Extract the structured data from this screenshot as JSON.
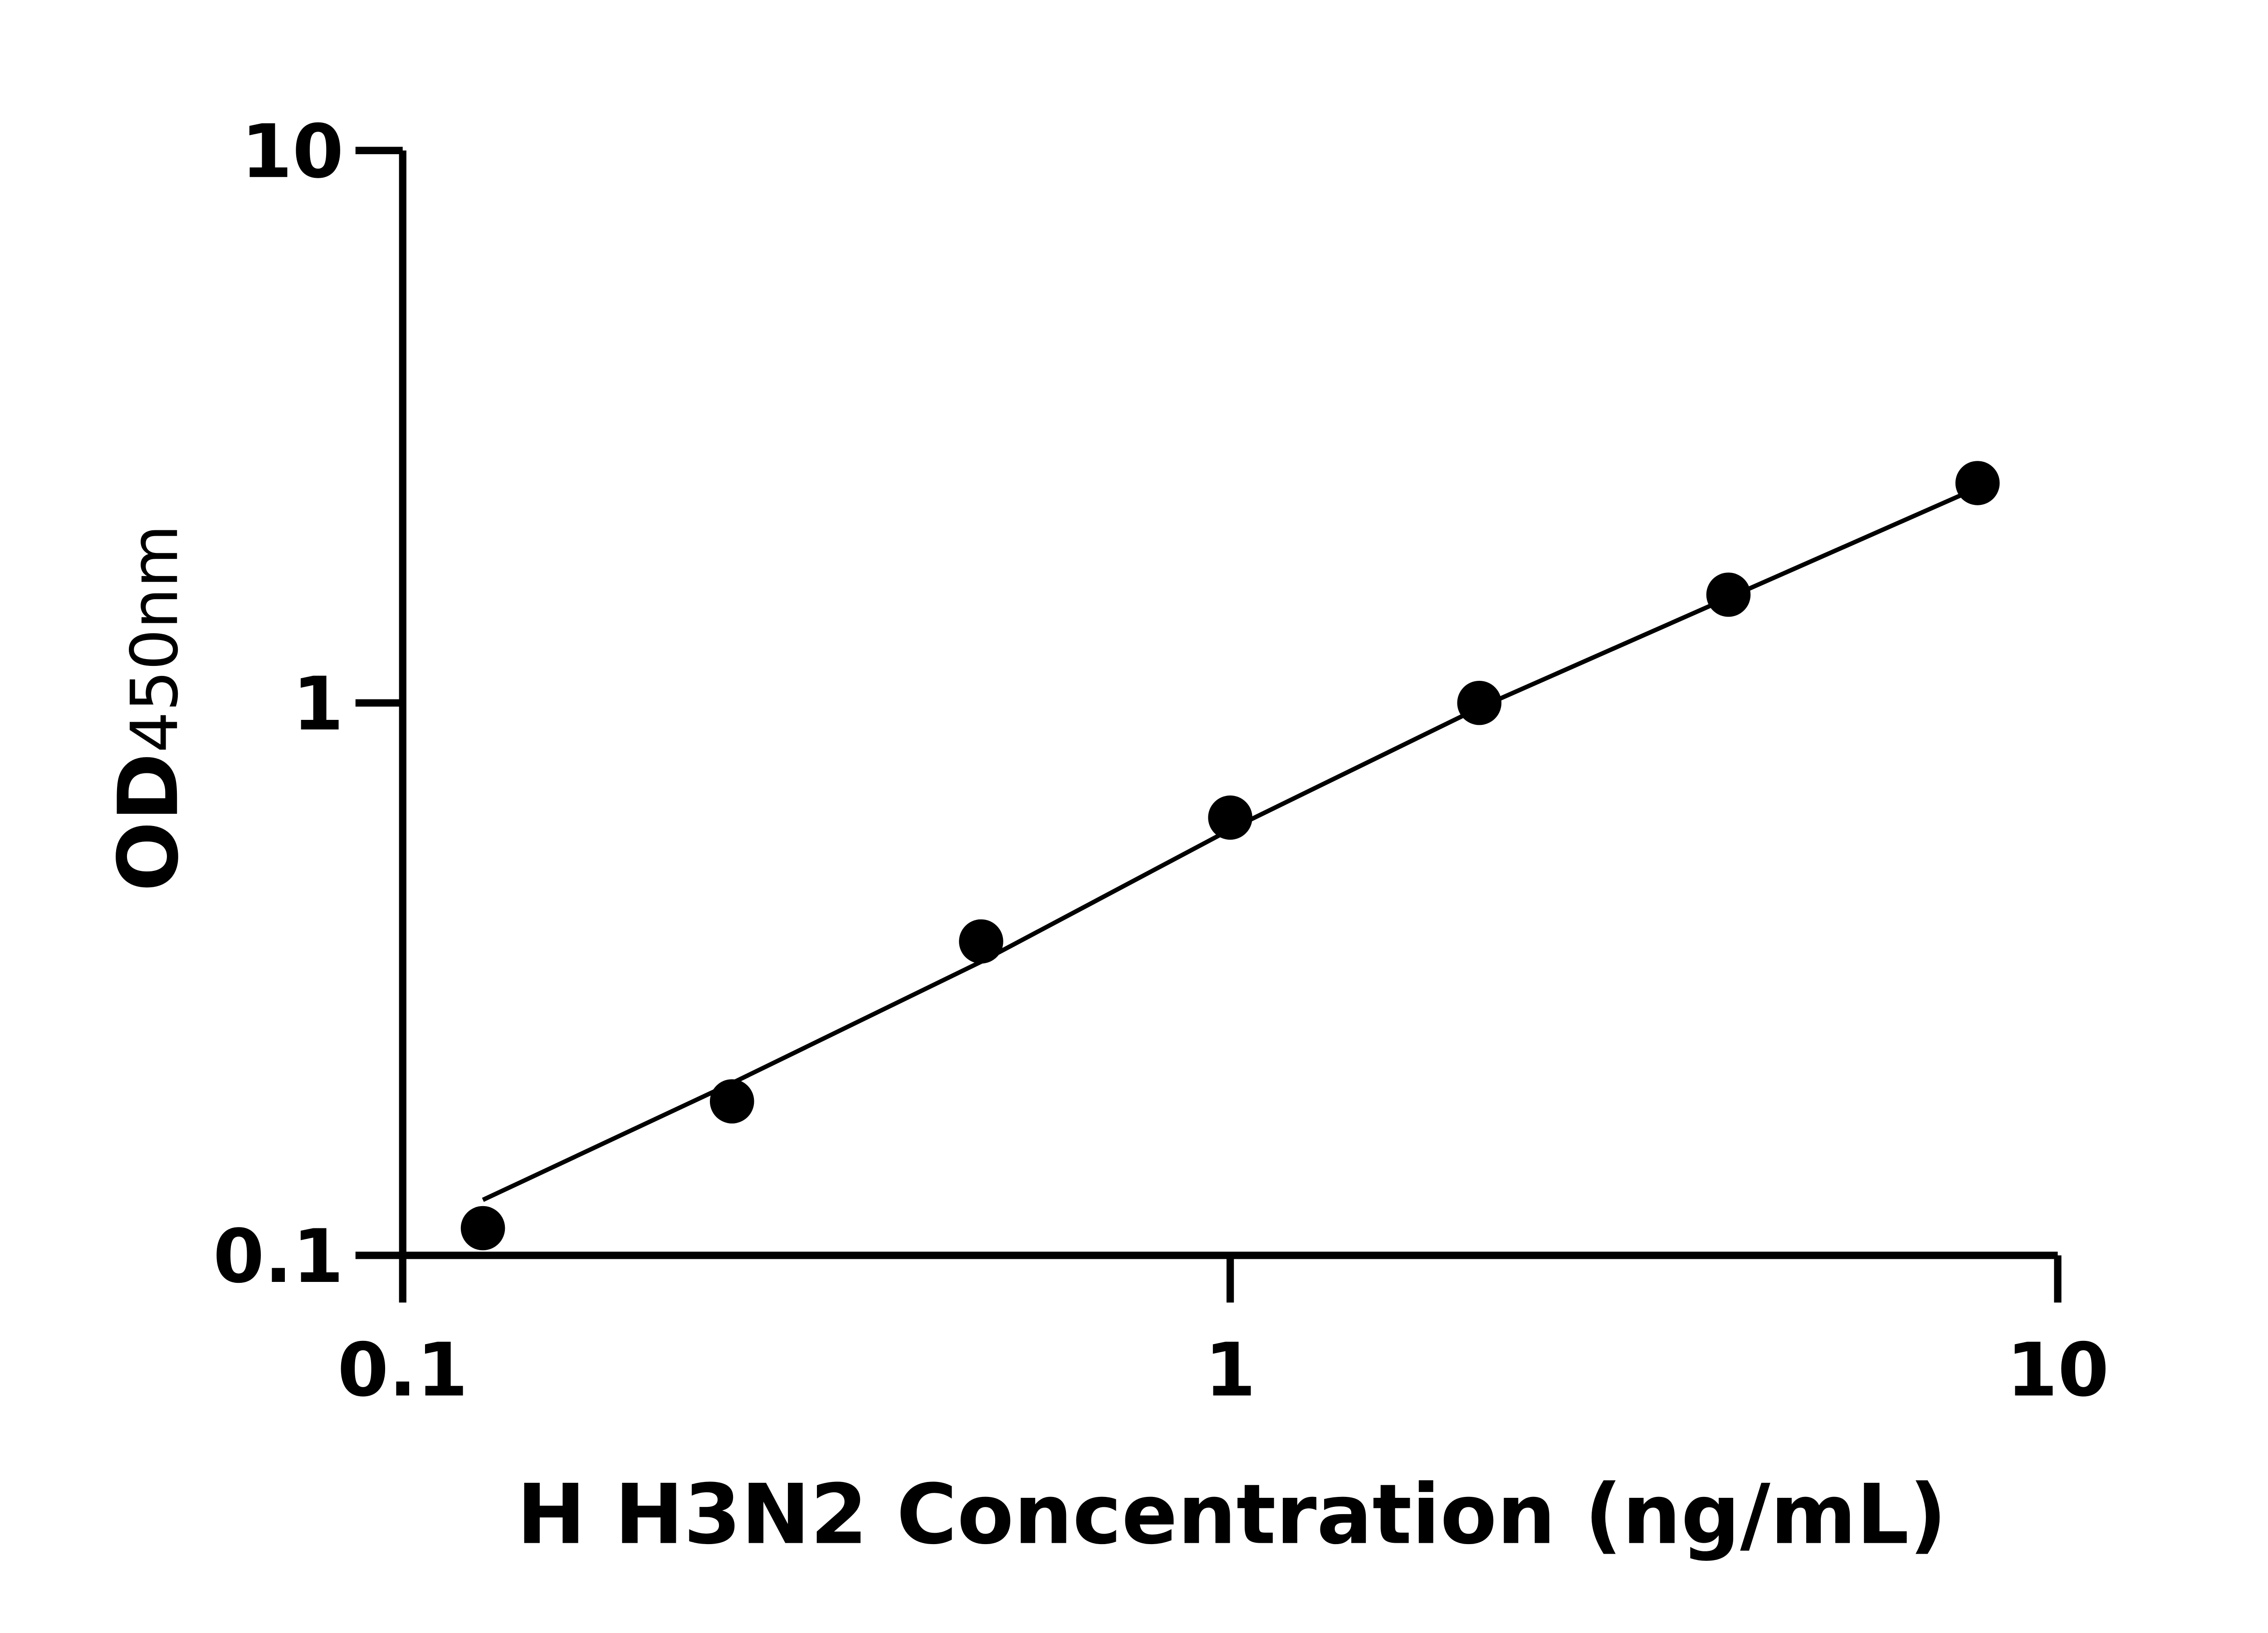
{
  "chart_data": {
    "type": "scatter",
    "title": "",
    "xlabel": "H H3N2 Concentration (ng/mL)",
    "ylabel": {
      "main": "OD",
      "sub": "450nm"
    },
    "x_scale": "log",
    "y_scale": "log",
    "xlim": [
      0.1,
      10
    ],
    "ylim": [
      0.1,
      10
    ],
    "x_ticks": [
      "0.1",
      "1",
      "10"
    ],
    "y_ticks": [
      "0.1",
      "1",
      "10"
    ],
    "grid": false,
    "legend": "none",
    "marker_color": "#000000",
    "series": [
      {
        "x": [
          0.125,
          0.25,
          0.5,
          1,
          2,
          4,
          8
        ],
        "y": [
          0.112,
          0.19,
          0.37,
          0.62,
          1.0,
          1.57,
          2.5
        ]
      }
    ],
    "fit_line": {
      "x": [
        0.125,
        0.25,
        0.5,
        1,
        2,
        4,
        8
      ],
      "y": [
        0.126,
        0.205,
        0.34,
        0.59,
        0.98,
        1.55,
        2.45
      ]
    }
  }
}
